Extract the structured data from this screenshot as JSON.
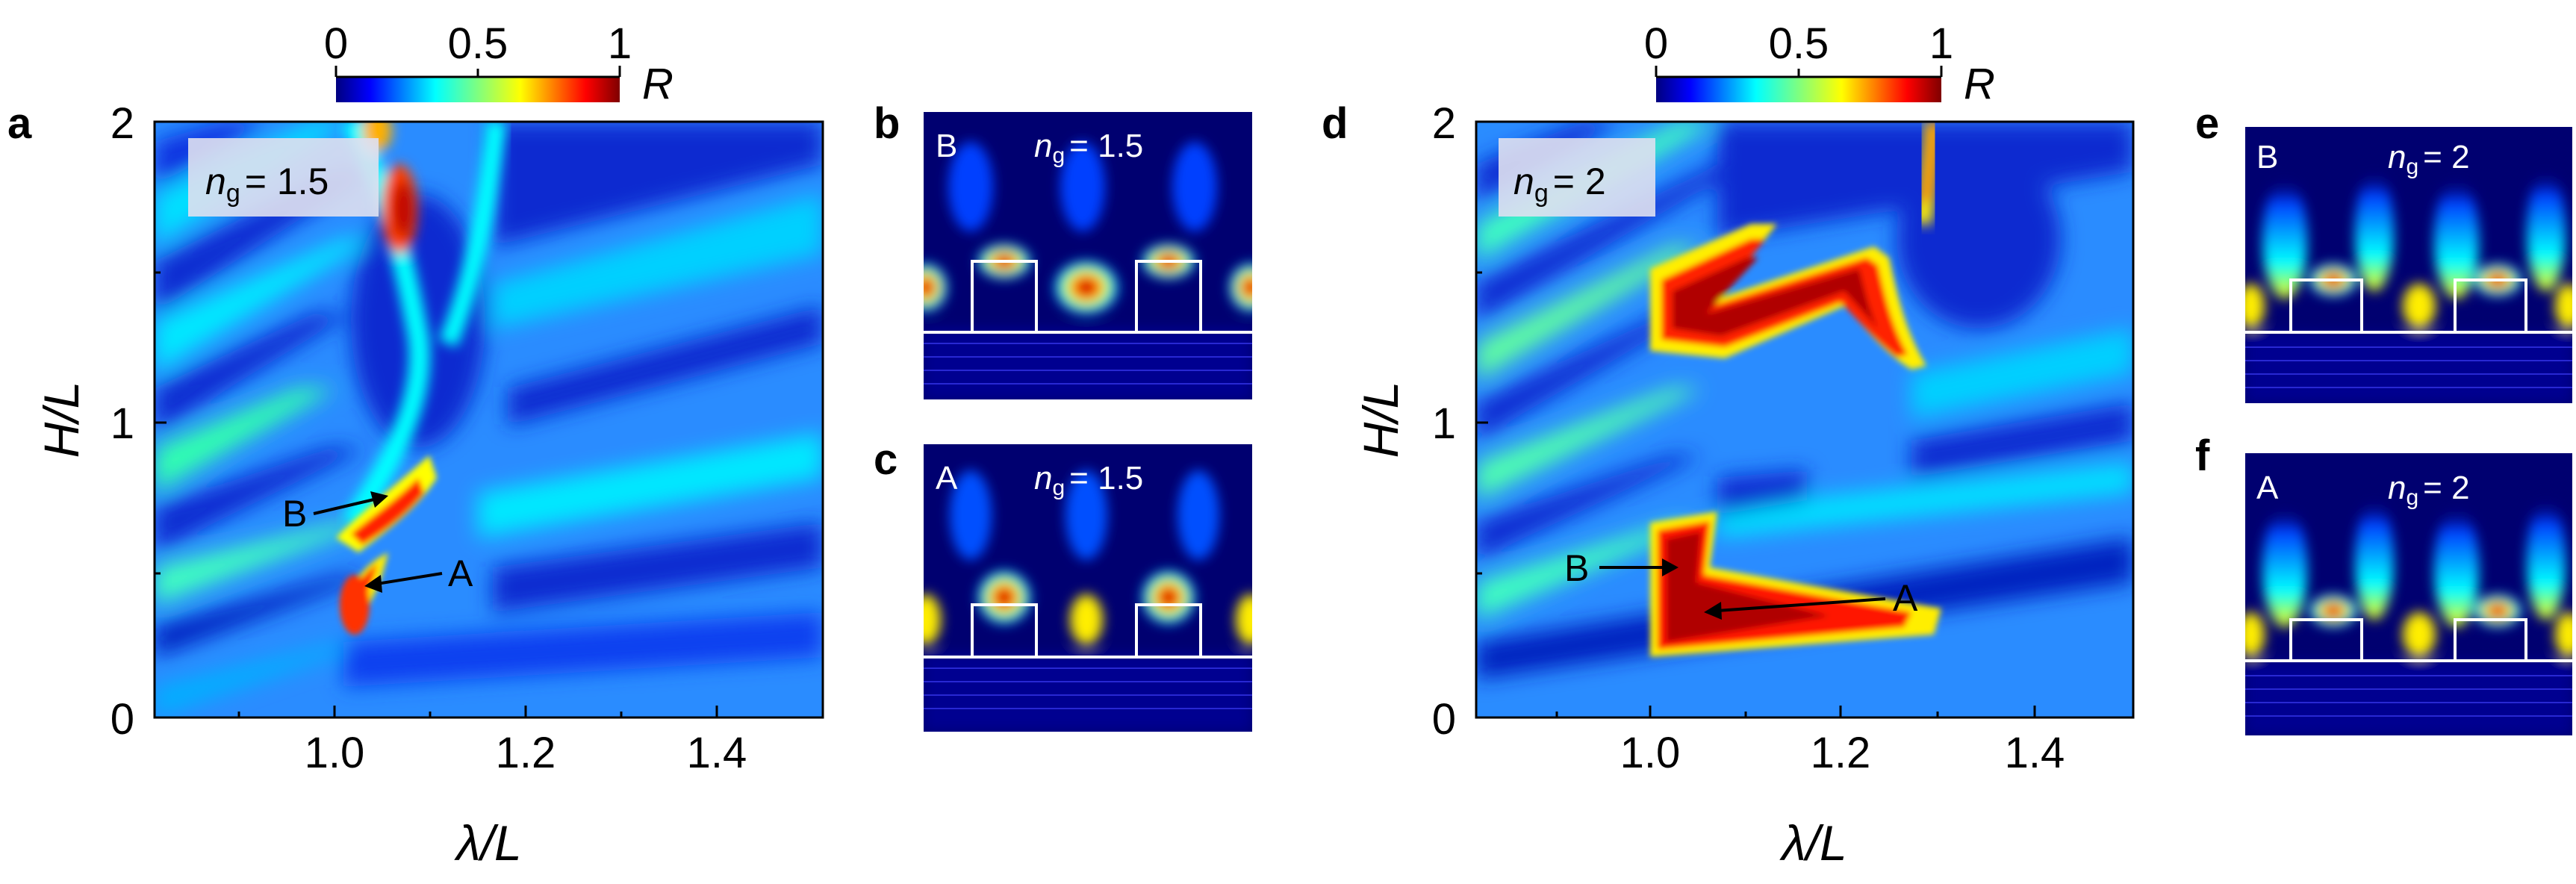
{
  "colorbar": {
    "ticks": [
      "0",
      "0.5",
      "1"
    ],
    "label": "R"
  },
  "panels": {
    "a": {
      "letter": "a",
      "ng_prefix": "n",
      "ng_sub": "g",
      "ng_value": "= 1.5",
      "markers": [
        "B",
        "A"
      ]
    },
    "b": {
      "letter": "b",
      "mode": "B",
      "ng_prefix": "n",
      "ng_sub": "g",
      "ng_value": "= 1.5"
    },
    "c": {
      "letter": "c",
      "mode": "A",
      "ng_prefix": "n",
      "ng_sub": "g",
      "ng_value": "= 1.5"
    },
    "d": {
      "letter": "d",
      "ng_prefix": "n",
      "ng_sub": "g",
      "ng_value": "= 2",
      "markers": [
        "B",
        "A"
      ]
    },
    "e": {
      "letter": "e",
      "mode": "B",
      "ng_prefix": "n",
      "ng_sub": "g",
      "ng_value": "= 2"
    },
    "f": {
      "letter": "f",
      "mode": "A",
      "ng_prefix": "n",
      "ng_sub": "g",
      "ng_value": "= 2"
    }
  },
  "chart_data": [
    {
      "type": "heatmap",
      "panel": "a",
      "xlabel": "λ/L",
      "ylabel": "H/L",
      "xlim": [
        0.8,
        1.5
      ],
      "ylim": [
        0,
        2
      ],
      "xticks": [
        "1.0",
        "1.2",
        "1.4"
      ],
      "yticks": [
        "0",
        "1",
        "2"
      ],
      "colorscale": "jet",
      "zlim": [
        0,
        1
      ],
      "annotations": [
        {
          "label": "B",
          "x": 1.05,
          "y": 0.73
        },
        {
          "label": "A",
          "x": 1.03,
          "y": 0.45
        }
      ]
    },
    {
      "type": "heatmap",
      "panel": "d",
      "xlabel": "λ/L",
      "ylabel": "H/L",
      "xlim": [
        0.8,
        1.5
      ],
      "ylim": [
        0,
        2
      ],
      "xticks": [
        "1.0",
        "1.2",
        "1.4"
      ],
      "yticks": [
        "0",
        "1",
        "2"
      ],
      "colorscale": "jet",
      "zlim": [
        0,
        1
      ],
      "annotations": [
        {
          "label": "B",
          "x": 1.03,
          "y": 0.5
        },
        {
          "label": "A",
          "x": 1.05,
          "y": 0.36
        }
      ]
    }
  ]
}
